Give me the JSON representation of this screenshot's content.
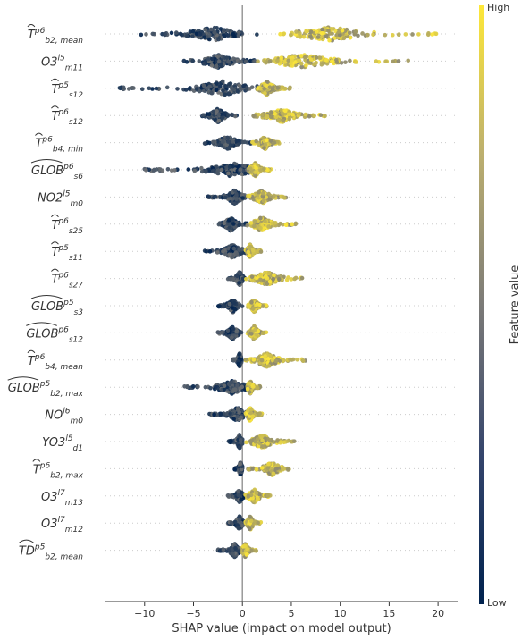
{
  "chart_data": {
    "type": "scatter",
    "subtype": "shap-beeswarm",
    "xlabel": "SHAP value (impact on model output)",
    "xlim": [
      -14,
      22
    ],
    "xticks": [
      -10,
      -5,
      0,
      5,
      10,
      15,
      20
    ],
    "xtick_labels": [
      "−10",
      "−5",
      "0",
      "5",
      "10",
      "15",
      "20"
    ],
    "colorbar": {
      "label": "Feature value",
      "high": "High",
      "low": "Low"
    },
    "colors": {
      "low": "#00224e",
      "mid": "#7c7b78",
      "high": "#fee838",
      "zero_line": "#999999",
      "row_guide": "#cccccc",
      "axis": "#333333"
    },
    "features": [
      {
        "sym": "T",
        "hat": "tilde",
        "sup": "p6",
        "sub": "b2, mean",
        "low_range": [
          -10.5,
          1.5
        ],
        "high_range": [
          2.5,
          20
        ],
        "low_center": -3,
        "high_center": 9
      },
      {
        "sym": "O3",
        "hat": "none",
        "sup": "l5",
        "sub": "m11",
        "low_range": [
          -6,
          1.5
        ],
        "high_range": [
          1.5,
          17
        ],
        "low_center": -2.5,
        "high_center": 6
      },
      {
        "sym": "T",
        "hat": "tilde",
        "sup": "p5",
        "sub": "s12",
        "low_range": [
          -13,
          1.5
        ],
        "high_range": [
          1.5,
          5
        ],
        "low_center": -2,
        "high_center": 2.5
      },
      {
        "sym": "T",
        "hat": "tilde",
        "sup": "p6",
        "sub": "s12",
        "low_range": [
          -4.2,
          -0.5
        ],
        "high_range": [
          1,
          8.5
        ],
        "low_center": -2.5,
        "high_center": 4
      },
      {
        "sym": "T",
        "hat": "tilde",
        "sup": "p6",
        "sub": "b4, min",
        "low_range": [
          -4,
          1
        ],
        "high_range": [
          1,
          3.8
        ],
        "low_center": -1.5,
        "high_center": 2.3
      },
      {
        "sym": "GLOB",
        "hat": "wide",
        "sup": "p6",
        "sub": "s6",
        "low_range": [
          -10,
          1
        ],
        "high_range": [
          0.5,
          3
        ],
        "low_center": -1,
        "high_center": 1.3
      },
      {
        "sym": "NO2",
        "hat": "none",
        "sup": "l5",
        "sub": "m0",
        "low_range": [
          -3.5,
          0.5
        ],
        "high_range": [
          0.5,
          4.5
        ],
        "low_center": -0.8,
        "high_center": 2
      },
      {
        "sym": "T",
        "hat": "tilde",
        "sup": "p6",
        "sub": "s25",
        "low_range": [
          -2.5,
          0.5
        ],
        "high_range": [
          0.5,
          5.5
        ],
        "low_center": -1.2,
        "high_center": 2
      },
      {
        "sym": "T",
        "hat": "tilde",
        "sup": "p5",
        "sub": "s11",
        "low_range": [
          -4,
          0.5
        ],
        "high_range": [
          0.3,
          2
        ],
        "low_center": -1,
        "high_center": 0.8
      },
      {
        "sym": "T",
        "hat": "tilde",
        "sup": "p6",
        "sub": "s27",
        "low_range": [
          -1.5,
          0.3
        ],
        "high_range": [
          0.3,
          6.5
        ],
        "low_center": -0.3,
        "high_center": 2.5
      },
      {
        "sym": "GLOB",
        "hat": "wide",
        "sup": "p5",
        "sub": "s3",
        "low_range": [
          -2.5,
          0
        ],
        "high_range": [
          0.5,
          2.5
        ],
        "low_center": -1,
        "high_center": 1.2
      },
      {
        "sym": "GLOB",
        "hat": "wide",
        "sup": "p6",
        "sub": "s12",
        "low_range": [
          -2.5,
          0
        ],
        "high_range": [
          0.5,
          2.5
        ],
        "low_center": -1,
        "high_center": 1.2
      },
      {
        "sym": "T",
        "hat": "tilde",
        "sup": "p6",
        "sub": "b4, mean",
        "low_range": [
          -1,
          0
        ],
        "high_range": [
          0.3,
          6.5
        ],
        "low_center": -0.3,
        "high_center": 2.5
      },
      {
        "sym": "GLOB",
        "hat": "wide",
        "sup": "p5",
        "sub": "b2, max",
        "low_range": [
          -6,
          0.5
        ],
        "high_range": [
          0.5,
          1.8
        ],
        "low_center": -1,
        "high_center": 0.8
      },
      {
        "sym": "NO",
        "hat": "none",
        "sup": "l6",
        "sub": "m0",
        "low_range": [
          -3.5,
          0.5
        ],
        "high_range": [
          0.3,
          2
        ],
        "low_center": -0.5,
        "high_center": 0.8
      },
      {
        "sym": "YO3",
        "hat": "none",
        "sup": "l5",
        "sub": "d1",
        "low_range": [
          -1.5,
          0
        ],
        "high_range": [
          0.3,
          5.5
        ],
        "low_center": -0.3,
        "high_center": 2
      },
      {
        "sym": "T",
        "hat": "tilde",
        "sup": "p6",
        "sub": "b2, max",
        "low_range": [
          -0.8,
          0
        ],
        "high_range": [
          0.5,
          4.8
        ],
        "low_center": -0.2,
        "high_center": 3
      },
      {
        "sym": "O3",
        "hat": "none",
        "sup": "l7",
        "sub": "m13",
        "low_range": [
          -1.5,
          0.2
        ],
        "high_range": [
          0.3,
          3
        ],
        "low_center": -0.3,
        "high_center": 1.2
      },
      {
        "sym": "O3",
        "hat": "none",
        "sup": "l7",
        "sub": "m12",
        "low_range": [
          -1.5,
          0.2
        ],
        "high_range": [
          0.3,
          2
        ],
        "low_center": -0.3,
        "high_center": 0.8
      },
      {
        "sym": "TD",
        "hat": "wide",
        "sup": "p5",
        "sub": "b2, mean",
        "low_range": [
          -2.5,
          0
        ],
        "high_range": [
          0,
          1.5
        ],
        "low_center": -0.8,
        "high_center": 0.3
      }
    ]
  }
}
